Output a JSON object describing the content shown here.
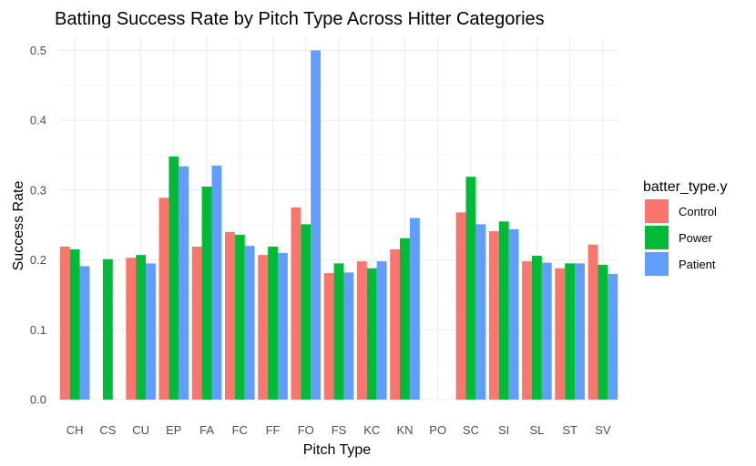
{
  "chart_data": {
    "type": "bar",
    "title": "Batting Success Rate by Pitch Type Across Hitter Categories",
    "xlabel": "Pitch Type",
    "ylabel": "Success Rate",
    "ylim": [
      0,
      0.52
    ],
    "yticks": [
      "0.0",
      "0.1",
      "0.2",
      "0.3",
      "0.4",
      "0.5"
    ],
    "grid": true,
    "legend": {
      "title": "batter_type.y",
      "position": "right"
    },
    "categories": [
      "CH",
      "CS",
      "CU",
      "EP",
      "FA",
      "FC",
      "FF",
      "FO",
      "FS",
      "KC",
      "KN",
      "PO",
      "SC",
      "SI",
      "SL",
      "ST",
      "SV"
    ],
    "series": [
      {
        "name": "Control",
        "color": "#F8766D",
        "values": [
          0.219,
          null,
          0.203,
          0.289,
          0.219,
          0.24,
          0.207,
          0.275,
          0.181,
          0.198,
          0.215,
          null,
          0.268,
          0.241,
          0.198,
          0.188,
          0.222
        ]
      },
      {
        "name": "Power",
        "color": "#00BA38",
        "values": [
          0.215,
          0.201,
          0.207,
          0.348,
          0.305,
          0.236,
          0.219,
          0.251,
          0.195,
          0.188,
          0.231,
          null,
          0.319,
          0.255,
          0.206,
          0.195,
          0.193
        ]
      },
      {
        "name": "Patient",
        "color": "#619CFF",
        "values": [
          0.191,
          null,
          0.195,
          0.334,
          0.335,
          0.22,
          0.21,
          0.5,
          0.182,
          0.198,
          0.26,
          null,
          0.251,
          0.244,
          0.196,
          0.195,
          0.18
        ]
      }
    ]
  }
}
